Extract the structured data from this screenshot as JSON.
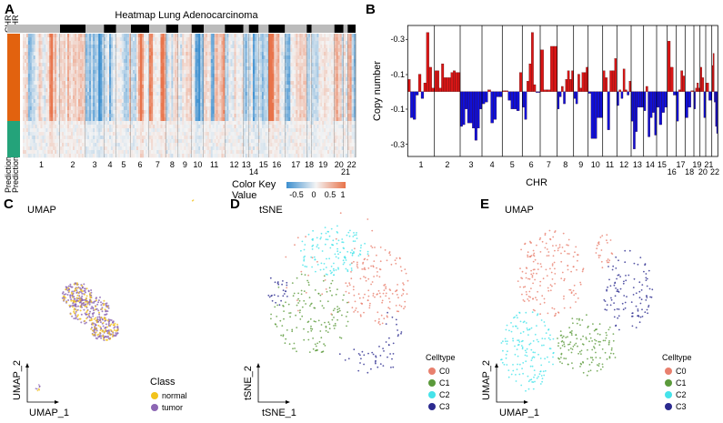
{
  "chart_data": [
    {
      "panel": "A",
      "type": "heatmap",
      "title": "Heatmap Lung Adenocarcinoma",
      "row_annotation_labels": [
        "CHR",
        "CHR"
      ],
      "column_annotation_labels": [
        "Prediction",
        "Prediction"
      ],
      "row_groups": [
        {
          "color": "#e2620f",
          "fraction": 0.72
        },
        {
          "color": "#24a37a",
          "fraction": 0.28
        }
      ],
      "chromosomes": [
        "1",
        "2",
        "3",
        "4",
        "5",
        "6",
        "7",
        "8",
        "9",
        "10",
        "11",
        "12",
        "13",
        "14",
        "15",
        "16",
        "17",
        "18",
        "19",
        "20",
        "21",
        "22"
      ],
      "color_key": {
        "title": "Color Key",
        "subtitle": "Value",
        "ticks": [
          "-0.5",
          "0",
          "0.5",
          "1"
        ],
        "low": "#3d8fcf",
        "mid": "#f4f4f4",
        "high": "#e8734a"
      }
    },
    {
      "panel": "B",
      "type": "bar",
      "ylabel": "Copy number",
      "xlabel": "CHR",
      "ytick_labels": [
        "-0.3",
        "-0.1",
        "-0.1",
        "-0.3"
      ],
      "ylim": [
        -0.37,
        0.37
      ],
      "gain_color": "#d91616",
      "loss_color": "#1010d8",
      "categories": [
        "1",
        "2",
        "3",
        "4",
        "5",
        "6",
        "7",
        "8",
        "9",
        "10",
        "11",
        "12",
        "13",
        "14",
        "15",
        "16",
        "17",
        "18",
        "19",
        "20",
        "21",
        "22"
      ],
      "values_by_chr": [
        [
          0.07,
          -0.15,
          -0.16,
          -0.02,
          0.1,
          -0.04,
          0.05,
          0.34,
          0.14,
          0.02
        ],
        [
          0.12,
          0.12,
          0.02,
          0.16,
          0.08,
          0.08,
          0.08,
          0.11,
          0.12,
          0.11,
          0.11
        ],
        [
          -0.2,
          -0.19,
          -0.1,
          -0.18,
          -0.18,
          -0.21,
          -0.28,
          -0.21,
          -0.1
        ],
        [
          -0.07,
          -0.06,
          0.01,
          -0.18,
          -0.16,
          -0.03,
          -0.03
        ],
        [
          0.005,
          0.005,
          -0.05,
          -0.1,
          -0.1,
          -0.11,
          0.11
        ],
        [
          -0.09,
          -0.16,
          0.06,
          0.16,
          0.34,
          0.04,
          -0.005,
          -0.005
        ],
        [
          0.24,
          0.01,
          0.01,
          0.26,
          0.26
        ],
        [
          -0.1,
          -0.03,
          0.03,
          -0.07,
          0.07,
          0.12,
          0.07,
          0.12
        ],
        [
          -0.04,
          -0.07,
          0.1,
          0.02,
          0.11,
          0.11,
          0.14
        ],
        [
          -0.01,
          -0.27,
          -0.27,
          -0.15,
          -0.15
        ],
        [
          0.12,
          0.08,
          -0.22,
          0.12,
          0.12,
          0.19
        ],
        [
          -0.08,
          0.01,
          -0.04,
          0.13,
          0.01,
          -0.02,
          0.06
        ],
        [
          -0.17,
          -0.33,
          -0.23,
          -0.09,
          -0.09,
          -0.09
        ],
        [
          -0.11,
          0.03,
          -0.26,
          -0.15,
          -0.12,
          -0.25
        ],
        [
          -0.09,
          -0.19,
          -0.12,
          -0.09
        ],
        [
          0.29,
          0.14,
          -0.02
        ],
        [
          -0.17,
          0.01,
          0.12,
          0.09
        ],
        [
          -0.15,
          -0.09,
          0.005
        ],
        [
          -0.1,
          0.02,
          0.05,
          0.02
        ],
        [
          0.14,
          0.08,
          -0.15
        ],
        [
          0.05,
          -0.05
        ],
        [
          0.15,
          0.22,
          -0.06,
          -0.2,
          -0.24
        ]
      ]
    },
    {
      "panel": "C",
      "type": "scatter",
      "title": "UMAP",
      "xlabel": "UMAP_1",
      "ylabel": "UMAP_2",
      "legend": {
        "title": "Class",
        "placement": "bottom-right",
        "items": [
          {
            "label": "normal",
            "color": "#f2c31b"
          },
          {
            "label": "tumor",
            "color": "#8c66b3"
          }
        ]
      }
    },
    {
      "panel": "D",
      "type": "scatter",
      "title": "tSNE",
      "xlabel": "tSNE_1",
      "ylabel": "tSNE_2",
      "legend": {
        "title": "Celltype",
        "placement": "bottom-right",
        "items": [
          {
            "label": "C0",
            "color": "#e8806e"
          },
          {
            "label": "C1",
            "color": "#5b9a3b"
          },
          {
            "label": "C2",
            "color": "#45e3ea"
          },
          {
            "label": "C3",
            "color": "#2b2a8f"
          }
        ]
      }
    },
    {
      "panel": "E",
      "type": "scatter",
      "title": "UMAP",
      "xlabel": "UMAP_1",
      "ylabel": "UMAP_2",
      "legend": {
        "title": "Celltype",
        "placement": "bottom-right",
        "items": [
          {
            "label": "C0",
            "color": "#e8806e"
          },
          {
            "label": "C1",
            "color": "#5b9a3b"
          },
          {
            "label": "C2",
            "color": "#45e3ea"
          },
          {
            "label": "C3",
            "color": "#2b2a8f"
          }
        ]
      }
    }
  ]
}
